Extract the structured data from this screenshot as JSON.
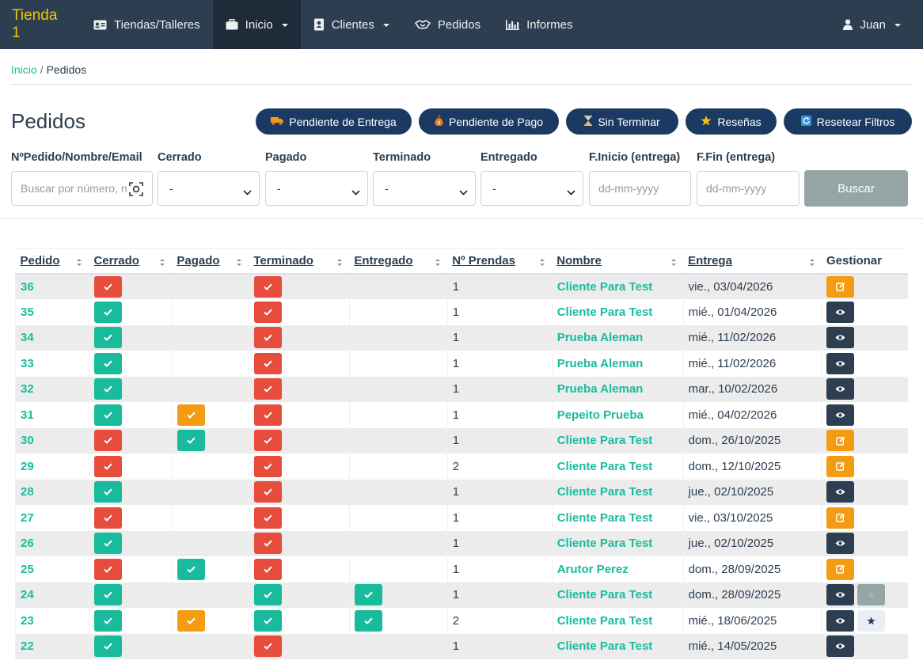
{
  "navbar": {
    "brand": "Tienda 1",
    "items": [
      {
        "label": "Tiendas/Talleres",
        "icon": "id-card-icon"
      },
      {
        "label": "Inicio",
        "icon": "briefcase-icon"
      },
      {
        "label": "Clientes",
        "icon": "address-book-icon"
      },
      {
        "label": "Pedidos",
        "icon": "handshake-icon"
      },
      {
        "label": "Informes",
        "icon": "bar-chart-icon"
      }
    ],
    "user": "Juan"
  },
  "breadcrumb": {
    "home": "Inicio",
    "current": "Pedidos"
  },
  "page_title": "Pedidos",
  "filter_buttons": [
    {
      "label": "Pendiente de Entrega",
      "icon": "truck-icon"
    },
    {
      "label": "Pendiente de Pago",
      "icon": "money-bag-icon"
    },
    {
      "label": "Sin Terminar",
      "icon": "hourglass-icon"
    },
    {
      "label": "Reseñas",
      "icon": "star-icon"
    },
    {
      "label": "Resetear Filtros",
      "icon": "refresh-icon"
    }
  ],
  "filters": {
    "search": {
      "label": "NºPedido/Nombre/Email",
      "placeholder": "Buscar por número, n"
    },
    "cerrado": {
      "label": "Cerrado",
      "value": "-"
    },
    "pagado": {
      "label": "Pagado",
      "value": "-"
    },
    "terminado": {
      "label": "Terminado",
      "value": "-"
    },
    "entregado": {
      "label": "Entregado",
      "value": "-"
    },
    "fecha_inicio": {
      "label": "F.Inicio (entrega)",
      "placeholder": "dd-mm-yyyy"
    },
    "fecha_fin": {
      "label": "F.Fin (entrega)",
      "placeholder": "dd-mm-yyyy"
    },
    "buscar_label": "Buscar"
  },
  "table": {
    "headers": [
      "Pedido",
      "Cerrado",
      "Pagado",
      "Terminado",
      "Entregado",
      "Nº Prendas",
      "Nombre",
      "Entrega",
      "Gestionar"
    ],
    "rows": [
      {
        "pedido": "36",
        "cerrado": "red",
        "pagado": "",
        "terminado": "red",
        "entregado": "",
        "prendas": "1",
        "nombre": "Cliente Para Test",
        "entrega": "vie., 03/04/2026",
        "actions": [
          "edit"
        ]
      },
      {
        "pedido": "35",
        "cerrado": "green",
        "pagado": "",
        "terminado": "red",
        "entregado": "",
        "prendas": "1",
        "nombre": "Cliente Para Test",
        "entrega": "mié., 01/04/2026",
        "actions": [
          "view"
        ]
      },
      {
        "pedido": "34",
        "cerrado": "green",
        "pagado": "",
        "terminado": "red",
        "entregado": "",
        "prendas": "1",
        "nombre": "Prueba Aleman",
        "entrega": "mié., 11/02/2026",
        "actions": [
          "view"
        ]
      },
      {
        "pedido": "33",
        "cerrado": "green",
        "pagado": "",
        "terminado": "red",
        "entregado": "",
        "prendas": "1",
        "nombre": "Prueba Aleman",
        "entrega": "mié., 11/02/2026",
        "actions": [
          "view"
        ]
      },
      {
        "pedido": "32",
        "cerrado": "green",
        "pagado": "",
        "terminado": "red",
        "entregado": "",
        "prendas": "1",
        "nombre": "Prueba Aleman",
        "entrega": "mar., 10/02/2026",
        "actions": [
          "view"
        ]
      },
      {
        "pedido": "31",
        "cerrado": "green",
        "pagado": "orange",
        "terminado": "red",
        "entregado": "",
        "prendas": "1",
        "nombre": "Pepeito Prueba",
        "entrega": "mié., 04/02/2026",
        "actions": [
          "view"
        ]
      },
      {
        "pedido": "30",
        "cerrado": "red",
        "pagado": "green",
        "terminado": "red",
        "entregado": "",
        "prendas": "1",
        "nombre": "Cliente Para Test",
        "entrega": "dom., 26/10/2025",
        "actions": [
          "edit"
        ]
      },
      {
        "pedido": "29",
        "cerrado": "red",
        "pagado": "",
        "terminado": "red",
        "entregado": "",
        "prendas": "2",
        "nombre": "Cliente Para Test",
        "entrega": "dom., 12/10/2025",
        "actions": [
          "edit"
        ]
      },
      {
        "pedido": "28",
        "cerrado": "green",
        "pagado": "",
        "terminado": "red",
        "entregado": "",
        "prendas": "1",
        "nombre": "Cliente Para Test",
        "entrega": "jue., 02/10/2025",
        "actions": [
          "view"
        ]
      },
      {
        "pedido": "27",
        "cerrado": "red",
        "pagado": "",
        "terminado": "red",
        "entregado": "",
        "prendas": "1",
        "nombre": "Cliente Para Test",
        "entrega": "vie., 03/10/2025",
        "actions": [
          "edit"
        ]
      },
      {
        "pedido": "26",
        "cerrado": "green",
        "pagado": "",
        "terminado": "red",
        "entregado": "",
        "prendas": "1",
        "nombre": "Cliente Para Test",
        "entrega": "jue., 02/10/2025",
        "actions": [
          "view"
        ]
      },
      {
        "pedido": "25",
        "cerrado": "red",
        "pagado": "green",
        "terminado": "red",
        "entregado": "",
        "prendas": "1",
        "nombre": "Arutor Perez",
        "entrega": "dom., 28/09/2025",
        "actions": [
          "edit"
        ]
      },
      {
        "pedido": "24",
        "cerrado": "green",
        "pagado": "",
        "terminado": "green",
        "entregado": "green",
        "prendas": "1",
        "nombre": "Cliente Para Test",
        "entrega": "dom., 28/09/2025",
        "actions": [
          "view",
          "gray"
        ]
      },
      {
        "pedido": "23",
        "cerrado": "green",
        "pagado": "orange",
        "terminado": "green",
        "entregado": "green",
        "prendas": "2",
        "nombre": "Cliente Para Test",
        "entrega": "mié., 18/06/2025",
        "actions": [
          "view",
          "star"
        ]
      },
      {
        "pedido": "22",
        "cerrado": "green",
        "pagado": "",
        "terminado": "red",
        "entregado": "",
        "prendas": "1",
        "nombre": "Cliente Para Test",
        "entrega": "mié., 14/05/2025",
        "actions": [
          "view"
        ]
      }
    ]
  },
  "colors": {
    "navbar": "#2c3e50",
    "brand": "#f1c40f",
    "accent": "#18bc9c",
    "danger": "#e74c3c",
    "warning": "#f39c12",
    "filter_button": "#1b3a63",
    "buscar_button": "#95a5a6"
  }
}
